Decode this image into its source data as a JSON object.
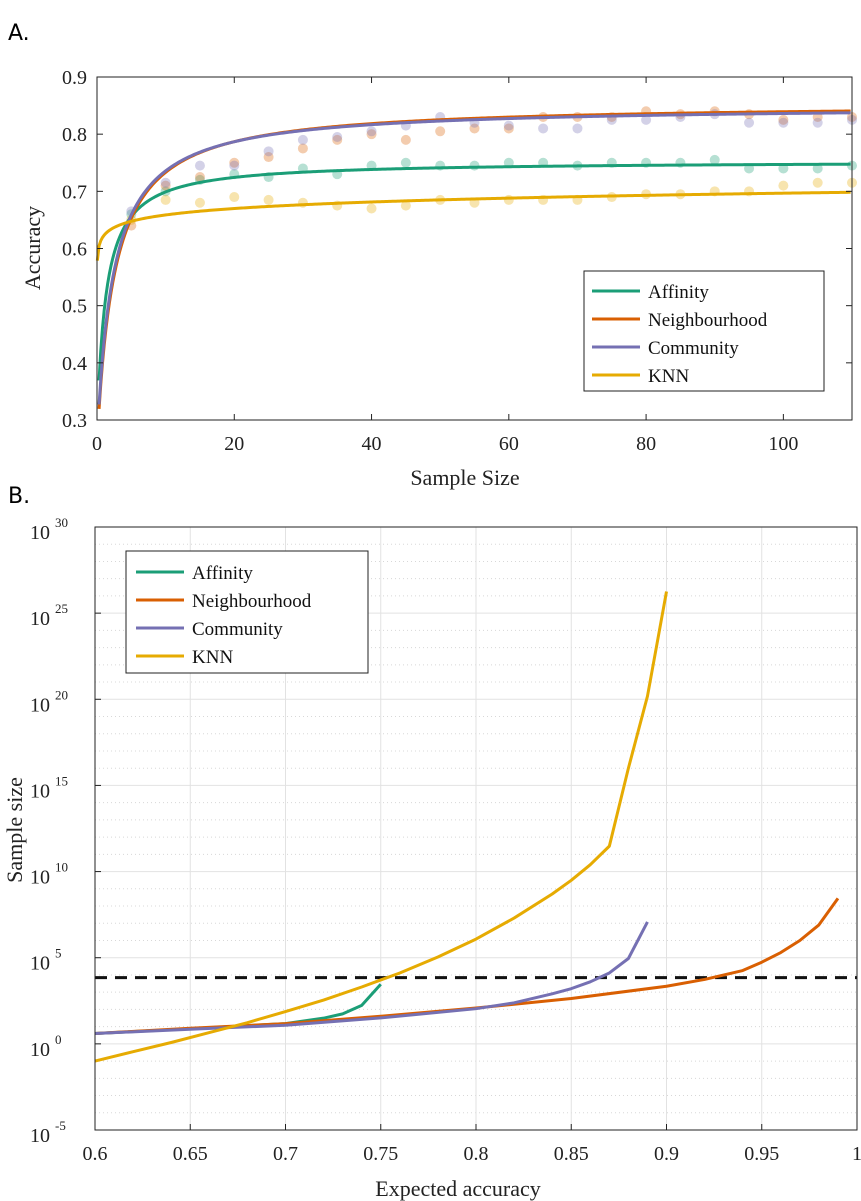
{
  "colors": {
    "affinity": "#1b9e77",
    "neighbourhood": "#d95f02",
    "community": "#7570b3",
    "knn": "#e6ab02"
  },
  "chart_data": [
    {
      "panel_label": "A.",
      "type": "scatter",
      "xlabel": "Sample Size",
      "ylabel": "Accuracy",
      "xlim": [
        0,
        110
      ],
      "ylim": [
        0.3,
        0.9
      ],
      "x_ticks": [
        "0",
        "20",
        "40",
        "60",
        "80",
        "100"
      ],
      "y_ticks": [
        "0.3",
        "0.4",
        "0.5",
        "0.6",
        "0.7",
        "0.8",
        "0.9"
      ],
      "legend_position": "lower-right",
      "grid": false,
      "series": [
        {
          "name": "Affinity",
          "key": "affinity",
          "fit": {
            "form": "a*x/(b+x)+c",
            "a": 0.473,
            "b": 1.29,
            "c": 0.28
          },
          "x": [
            5,
            10,
            15,
            20,
            25,
            30,
            35,
            40,
            45,
            50,
            55,
            60,
            65,
            70,
            75,
            80,
            85,
            90,
            95,
            100,
            105,
            110
          ],
          "y": [
            0.66,
            0.7,
            0.72,
            0.73,
            0.725,
            0.74,
            0.73,
            0.745,
            0.75,
            0.745,
            0.745,
            0.75,
            0.75,
            0.745,
            0.75,
            0.75,
            0.75,
            0.755,
            0.74,
            0.74,
            0.74,
            0.745
          ]
        },
        {
          "name": "Neighbourhood",
          "key": "neighbourhood",
          "fit": {
            "form": "a*x/(b+x)+c",
            "a": 0.598,
            "b": 2.53,
            "c": 0.256
          },
          "x": [
            5,
            10,
            15,
            20,
            25,
            30,
            35,
            40,
            45,
            50,
            55,
            60,
            65,
            70,
            75,
            80,
            85,
            90,
            95,
            100,
            105,
            110
          ],
          "y": [
            0.64,
            0.71,
            0.725,
            0.75,
            0.76,
            0.775,
            0.79,
            0.8,
            0.79,
            0.805,
            0.81,
            0.81,
            0.83,
            0.83,
            0.83,
            0.84,
            0.835,
            0.84,
            0.835,
            0.825,
            0.83,
            0.83
          ]
        },
        {
          "name": "Community",
          "key": "community",
          "fit": {
            "form": "a*x/(b+x)+c",
            "a": 0.588,
            "b": 2.41,
            "c": 0.262
          },
          "x": [
            5,
            10,
            15,
            20,
            25,
            30,
            35,
            40,
            45,
            50,
            55,
            60,
            65,
            70,
            75,
            80,
            85,
            90,
            95,
            100,
            105,
            110
          ],
          "y": [
            0.665,
            0.715,
            0.745,
            0.745,
            0.77,
            0.79,
            0.795,
            0.805,
            0.815,
            0.83,
            0.82,
            0.815,
            0.81,
            0.81,
            0.825,
            0.825,
            0.83,
            0.835,
            0.82,
            0.82,
            0.82,
            0.825
          ]
        },
        {
          "name": "KNN",
          "key": "knn",
          "fit": {
            "form": "a*x^b",
            "a": 0.6227,
            "b": 0.0244
          },
          "x": [
            5,
            10,
            15,
            20,
            25,
            30,
            35,
            40,
            45,
            50,
            55,
            60,
            65,
            70,
            75,
            80,
            85,
            90,
            95,
            100,
            105,
            110
          ],
          "y": [
            0.65,
            0.685,
            0.68,
            0.69,
            0.685,
            0.68,
            0.675,
            0.67,
            0.675,
            0.685,
            0.68,
            0.685,
            0.685,
            0.685,
            0.69,
            0.695,
            0.695,
            0.7,
            0.7,
            0.71,
            0.715,
            0.715
          ]
        }
      ]
    },
    {
      "panel_label": "B.",
      "type": "line",
      "xlabel": "Expected accuracy",
      "ylabel": "Sample size",
      "xlim": [
        0.6,
        1
      ],
      "ylim_log10": [
        -5,
        30
      ],
      "y_scale": "log",
      "x_ticks": [
        "0.6",
        "0.65",
        "0.7",
        "0.75",
        "0.8",
        "0.85",
        "0.9",
        "0.95",
        "1"
      ],
      "y_ticks": [
        {
          "base": "10",
          "exp": "30"
        },
        {
          "base": "10",
          "exp": "25"
        },
        {
          "base": "10",
          "exp": "20"
        },
        {
          "base": "10",
          "exp": "15"
        },
        {
          "base": "10",
          "exp": "10"
        },
        {
          "base": "10",
          "exp": "5"
        },
        {
          "base": "10",
          "exp": "0"
        },
        {
          "base": "10",
          "exp": "-5"
        }
      ],
      "legend_position": "top-left",
      "grid": true,
      "reference_line": {
        "style": "dashed",
        "y": 7000
      },
      "series": [
        {
          "name": "Affinity",
          "key": "affinity",
          "x": [
            0.6,
            0.65,
            0.7,
            0.72,
            0.73,
            0.74,
            0.75
          ],
          "y": [
            4,
            7.5,
            15,
            31,
            55,
            170,
            2900
          ]
        },
        {
          "name": "Neighbourhood",
          "key": "neighbourhood",
          "x": [
            0.6,
            0.65,
            0.7,
            0.75,
            0.8,
            0.85,
            0.9,
            0.92,
            0.94,
            0.95,
            0.96,
            0.97,
            0.98,
            0.99
          ],
          "y": [
            4,
            8,
            15,
            40,
            120,
            430,
            2200,
            5500,
            18000,
            55000,
            200000,
            1000000,
            8000000,
            280000000
          ]
        },
        {
          "name": "Community",
          "key": "community",
          "x": [
            0.6,
            0.65,
            0.7,
            0.75,
            0.8,
            0.82,
            0.84,
            0.85,
            0.86,
            0.87,
            0.88,
            0.89
          ],
          "y": [
            4,
            7,
            12,
            32,
            110,
            240,
            800,
            1600,
            4000,
            13000,
            90000,
            12000000
          ]
        },
        {
          "name": "KNN",
          "key": "knn",
          "x": [
            0.6,
            0.62,
            0.64,
            0.66,
            0.68,
            0.7,
            0.72,
            0.74,
            0.76,
            0.78,
            0.8,
            0.82,
            0.84,
            0.85,
            0.86,
            0.87,
            0.88,
            0.89,
            0.9
          ],
          "y": [
            0.1,
            0.35,
            1.2,
            4.5,
            17,
            75,
            350,
            2000,
            13000,
            110000,
            1200000,
            20000000,
            500000000,
            3100000000,
            25000000000,
            300000000000,
            10000000000000000,
            1.5e+20,
            1.8e+26
          ]
        }
      ]
    }
  ]
}
